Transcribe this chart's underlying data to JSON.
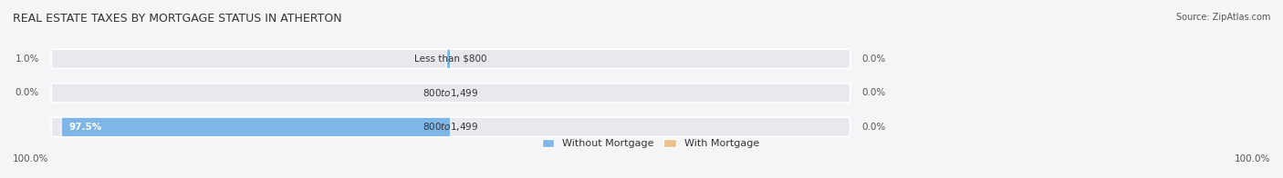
{
  "title": "REAL ESTATE TAXES BY MORTGAGE STATUS IN ATHERTON",
  "source": "Source: ZipAtlas.com",
  "rows": [
    {
      "label": "Less than $800",
      "without_mortgage": 1.0,
      "with_mortgage": 0.0,
      "left_label": "1.0%",
      "right_label": "0.0%"
    },
    {
      "label": "$800 to $1,499",
      "without_mortgage": 0.0,
      "with_mortgage": 0.0,
      "left_label": "0.0%",
      "right_label": "0.0%"
    },
    {
      "label": "$800 to $1,499",
      "without_mortgage": 97.5,
      "with_mortgage": 0.0,
      "left_label": "97.5%",
      "right_label": "0.0%"
    }
  ],
  "color_without": "#7EB6E8",
  "color_with": "#F0C08A",
  "bar_bg_color": "#E8E8EE",
  "bar_height": 0.55,
  "x_left_label": "100.0%",
  "x_right_label": "100.0%",
  "legend_without": "Without Mortgage",
  "legend_with": "With Mortgage",
  "title_fontsize": 9,
  "source_fontsize": 7,
  "label_fontsize": 7.5,
  "bar_label_fontsize": 7.5,
  "legend_fontsize": 8
}
